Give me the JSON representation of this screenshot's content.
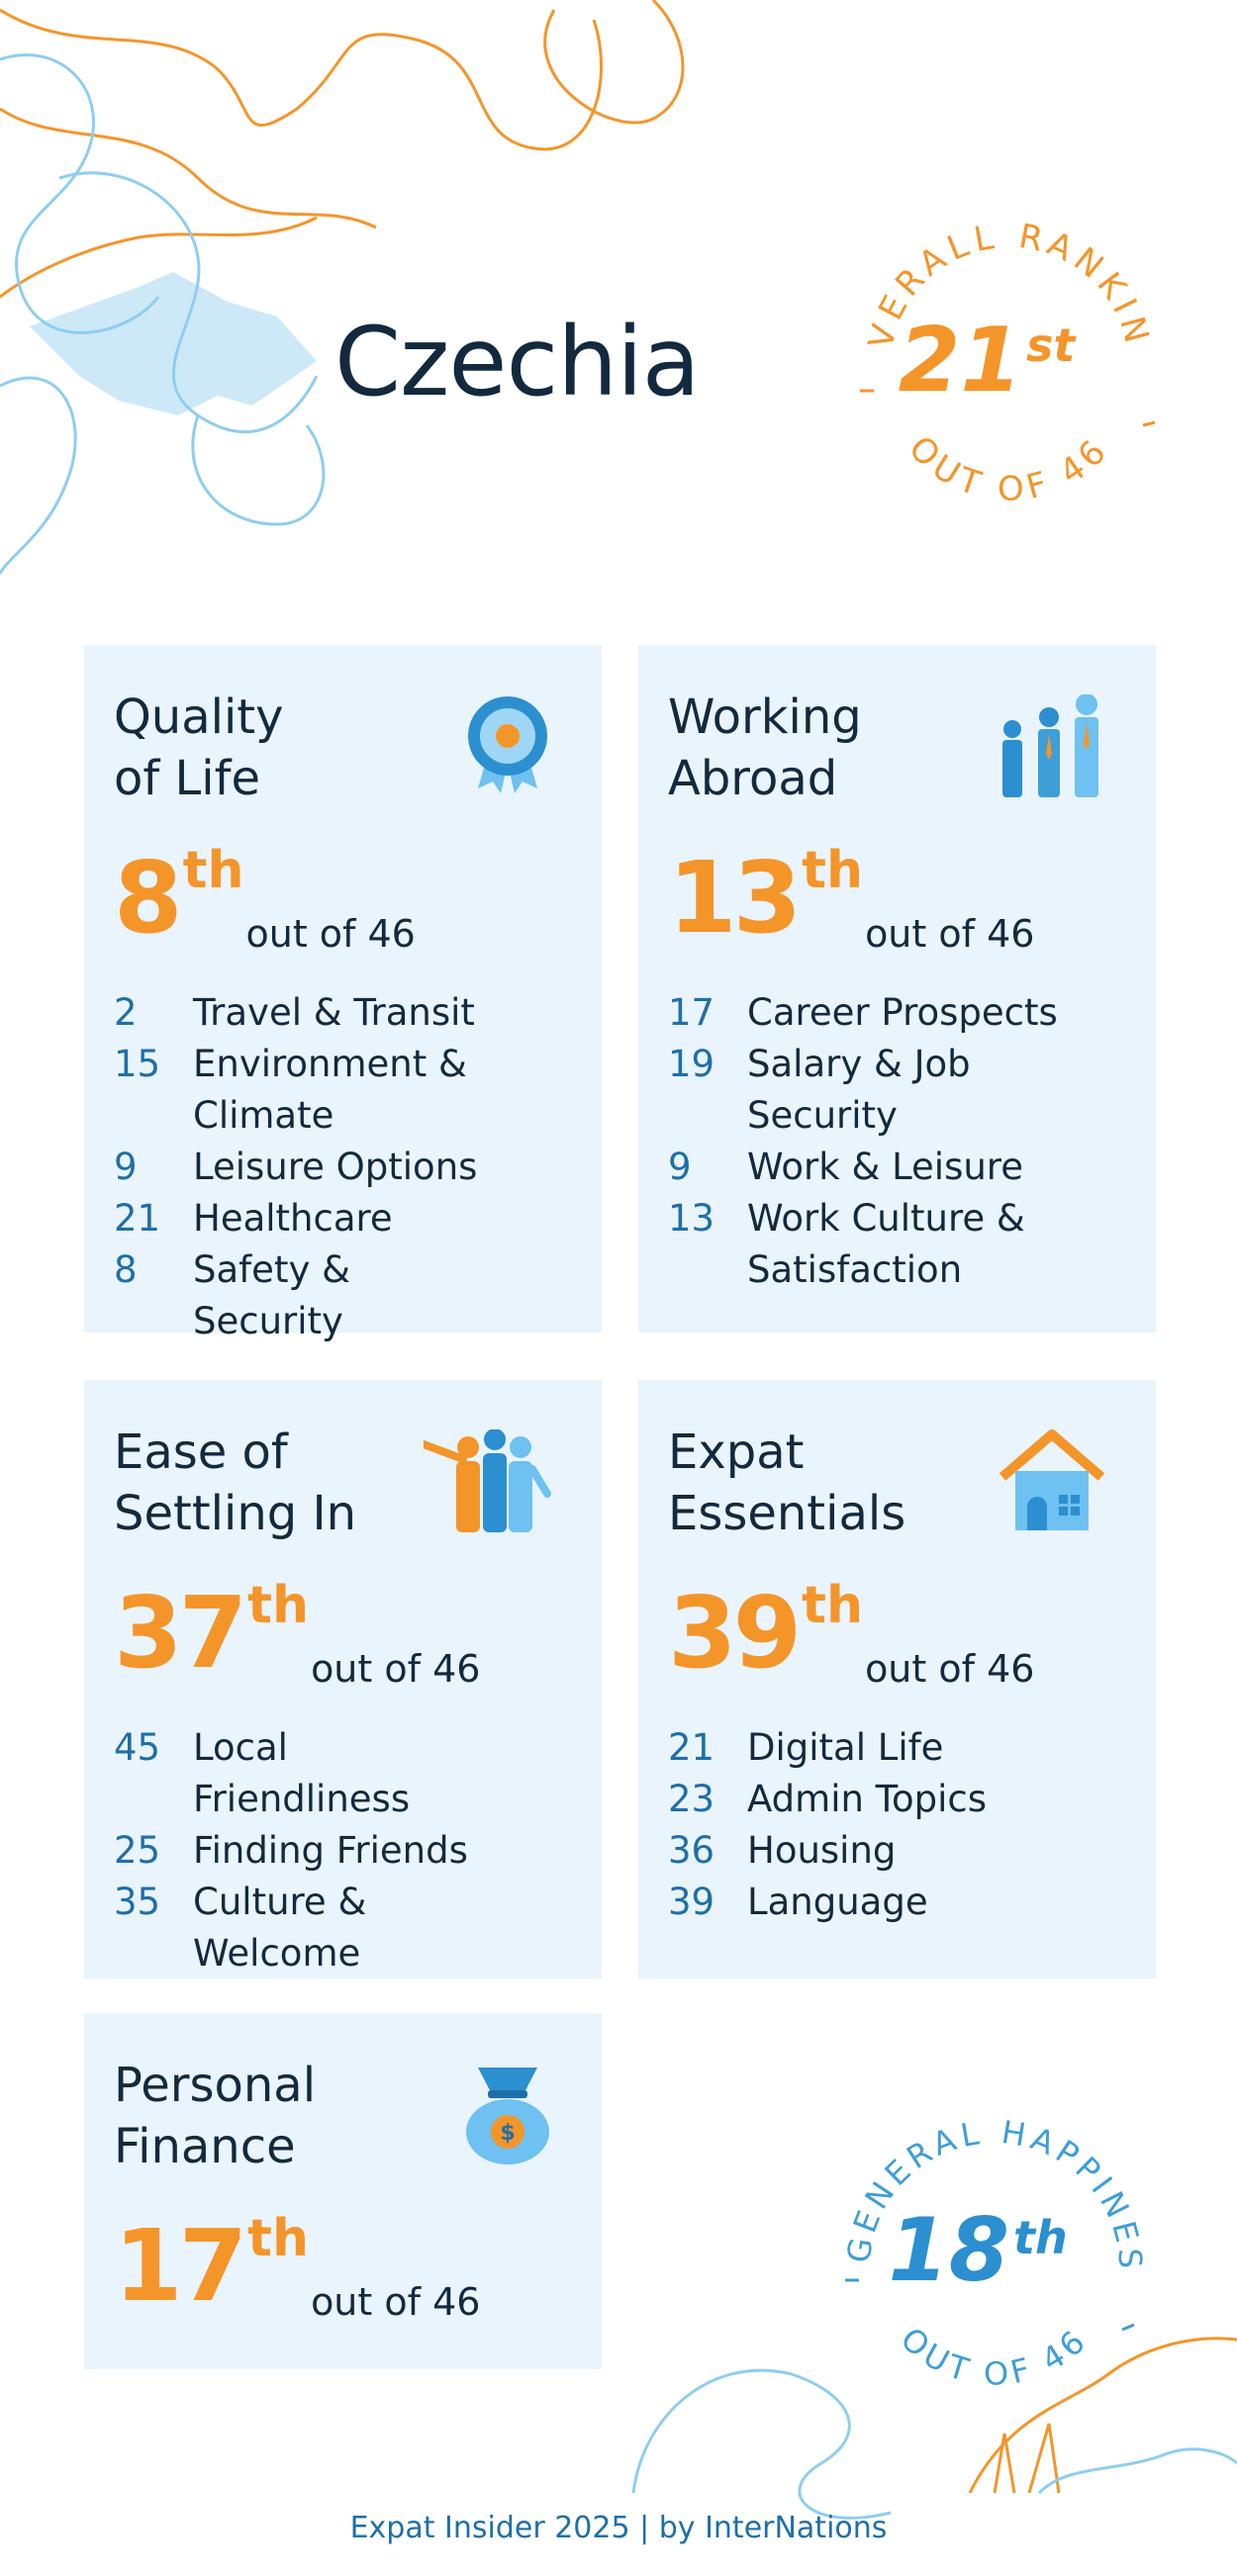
{
  "country": "Czechia",
  "overall": {
    "label": "OVERALL RANKING",
    "rank": "21",
    "suffix": "st",
    "out_of": "OUT OF 46"
  },
  "happiness": {
    "label": "GENERAL HAPPINESS",
    "rank": "18",
    "suffix": "th",
    "out_of": "OUT OF 46"
  },
  "categories": [
    {
      "title": "Quality\nof Life",
      "icon": "award-badge-icon",
      "rank": "8",
      "suffix": "th",
      "out_of": "out of 46",
      "subs": [
        {
          "rank": "2",
          "label": "Travel & Transit"
        },
        {
          "rank": "15",
          "label": "Environment & Climate"
        },
        {
          "rank": "9",
          "label": "Leisure Options"
        },
        {
          "rank": "21",
          "label": "Healthcare"
        },
        {
          "rank": "8",
          "label": "Safety & Security"
        }
      ]
    },
    {
      "title": "Working\nAbroad",
      "icon": "business-people-icon",
      "rank": "13",
      "suffix": "th",
      "out_of": "out of 46",
      "subs": [
        {
          "rank": "17",
          "label": "Career Prospects"
        },
        {
          "rank": "19",
          "label": "Salary & Job Security"
        },
        {
          "rank": "9",
          "label": "Work & Leisure"
        },
        {
          "rank": "13",
          "label": "Work Culture & Satisfaction"
        }
      ]
    },
    {
      "title": "Ease of\nSettling In",
      "icon": "welcoming-people-icon",
      "rank": "37",
      "suffix": "th",
      "out_of": "out of 46",
      "subs": [
        {
          "rank": "45",
          "label": "Local Friendliness"
        },
        {
          "rank": "25",
          "label": "Finding Friends"
        },
        {
          "rank": "35",
          "label": "Culture & Welcome"
        }
      ]
    },
    {
      "title": "Expat\nEssentials",
      "icon": "house-icon",
      "rank": "39",
      "suffix": "th",
      "out_of": "out of 46",
      "subs": [
        {
          "rank": "21",
          "label": "Digital Life"
        },
        {
          "rank": "23",
          "label": "Admin Topics"
        },
        {
          "rank": "36",
          "label": "Housing"
        },
        {
          "rank": "39",
          "label": "Language"
        }
      ]
    },
    {
      "title": "Personal\nFinance",
      "icon": "money-bag-icon",
      "rank": "17",
      "suffix": "th",
      "out_of": "out of 46",
      "subs": []
    }
  ],
  "footer": "Expat Insider 2025  |  by InterNations",
  "colors": {
    "orange": "#f4952a",
    "blue_dark": "#1e6fa8",
    "blue_light": "#6ec1f0",
    "card_bg": "#e9f4fc",
    "text": "#13293d"
  }
}
